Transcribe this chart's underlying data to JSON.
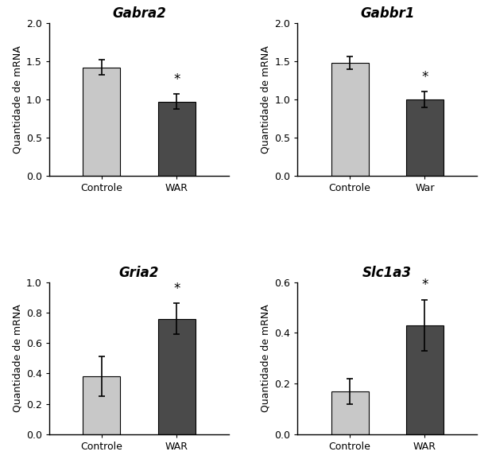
{
  "subplots": [
    {
      "title": "Gabra2",
      "categories": [
        "Controle",
        "WAR"
      ],
      "values": [
        1.42,
        0.97
      ],
      "errors": [
        0.1,
        0.1
      ],
      "ylim": [
        0,
        2.0
      ],
      "yticks": [
        0.0,
        0.5,
        1.0,
        1.5,
        2.0
      ],
      "star_on": 1,
      "ylabel": "Quantidade de mRNA"
    },
    {
      "title": "Gabbr1",
      "categories": [
        "Controle",
        "War"
      ],
      "values": [
        1.48,
        1.0
      ],
      "errors": [
        0.08,
        0.1
      ],
      "ylim": [
        0,
        2.0
      ],
      "yticks": [
        0.0,
        0.5,
        1.0,
        1.5,
        2.0
      ],
      "star_on": 1,
      "ylabel": "Quantidade de mRNA"
    },
    {
      "title": "Gria2",
      "categories": [
        "Controle",
        "WAR"
      ],
      "values": [
        0.38,
        0.76
      ],
      "errors": [
        0.13,
        0.1
      ],
      "ylim": [
        0,
        1.0
      ],
      "yticks": [
        0.0,
        0.2,
        0.4,
        0.6,
        0.8,
        1.0
      ],
      "star_on": 1,
      "ylabel": "Quantidade de mRNA"
    },
    {
      "title": "Slc1a3",
      "categories": [
        "Controle",
        "WAR"
      ],
      "values": [
        0.17,
        0.43
      ],
      "errors": [
        0.05,
        0.1
      ],
      "ylim": [
        0,
        0.6
      ],
      "yticks": [
        0.0,
        0.2,
        0.4,
        0.6
      ],
      "star_on": 1,
      "ylabel": "Quantidade de mRNA"
    }
  ],
  "bar_colors": [
    "#c8c8c8",
    "#4a4a4a"
  ],
  "bar_edge_color": "#000000",
  "background_color": "#ffffff",
  "title_fontsize": 12,
  "label_fontsize": 9,
  "tick_fontsize": 9,
  "star_fontsize": 12,
  "error_capsize": 3,
  "error_linewidth": 1.2,
  "bar_width": 0.5
}
